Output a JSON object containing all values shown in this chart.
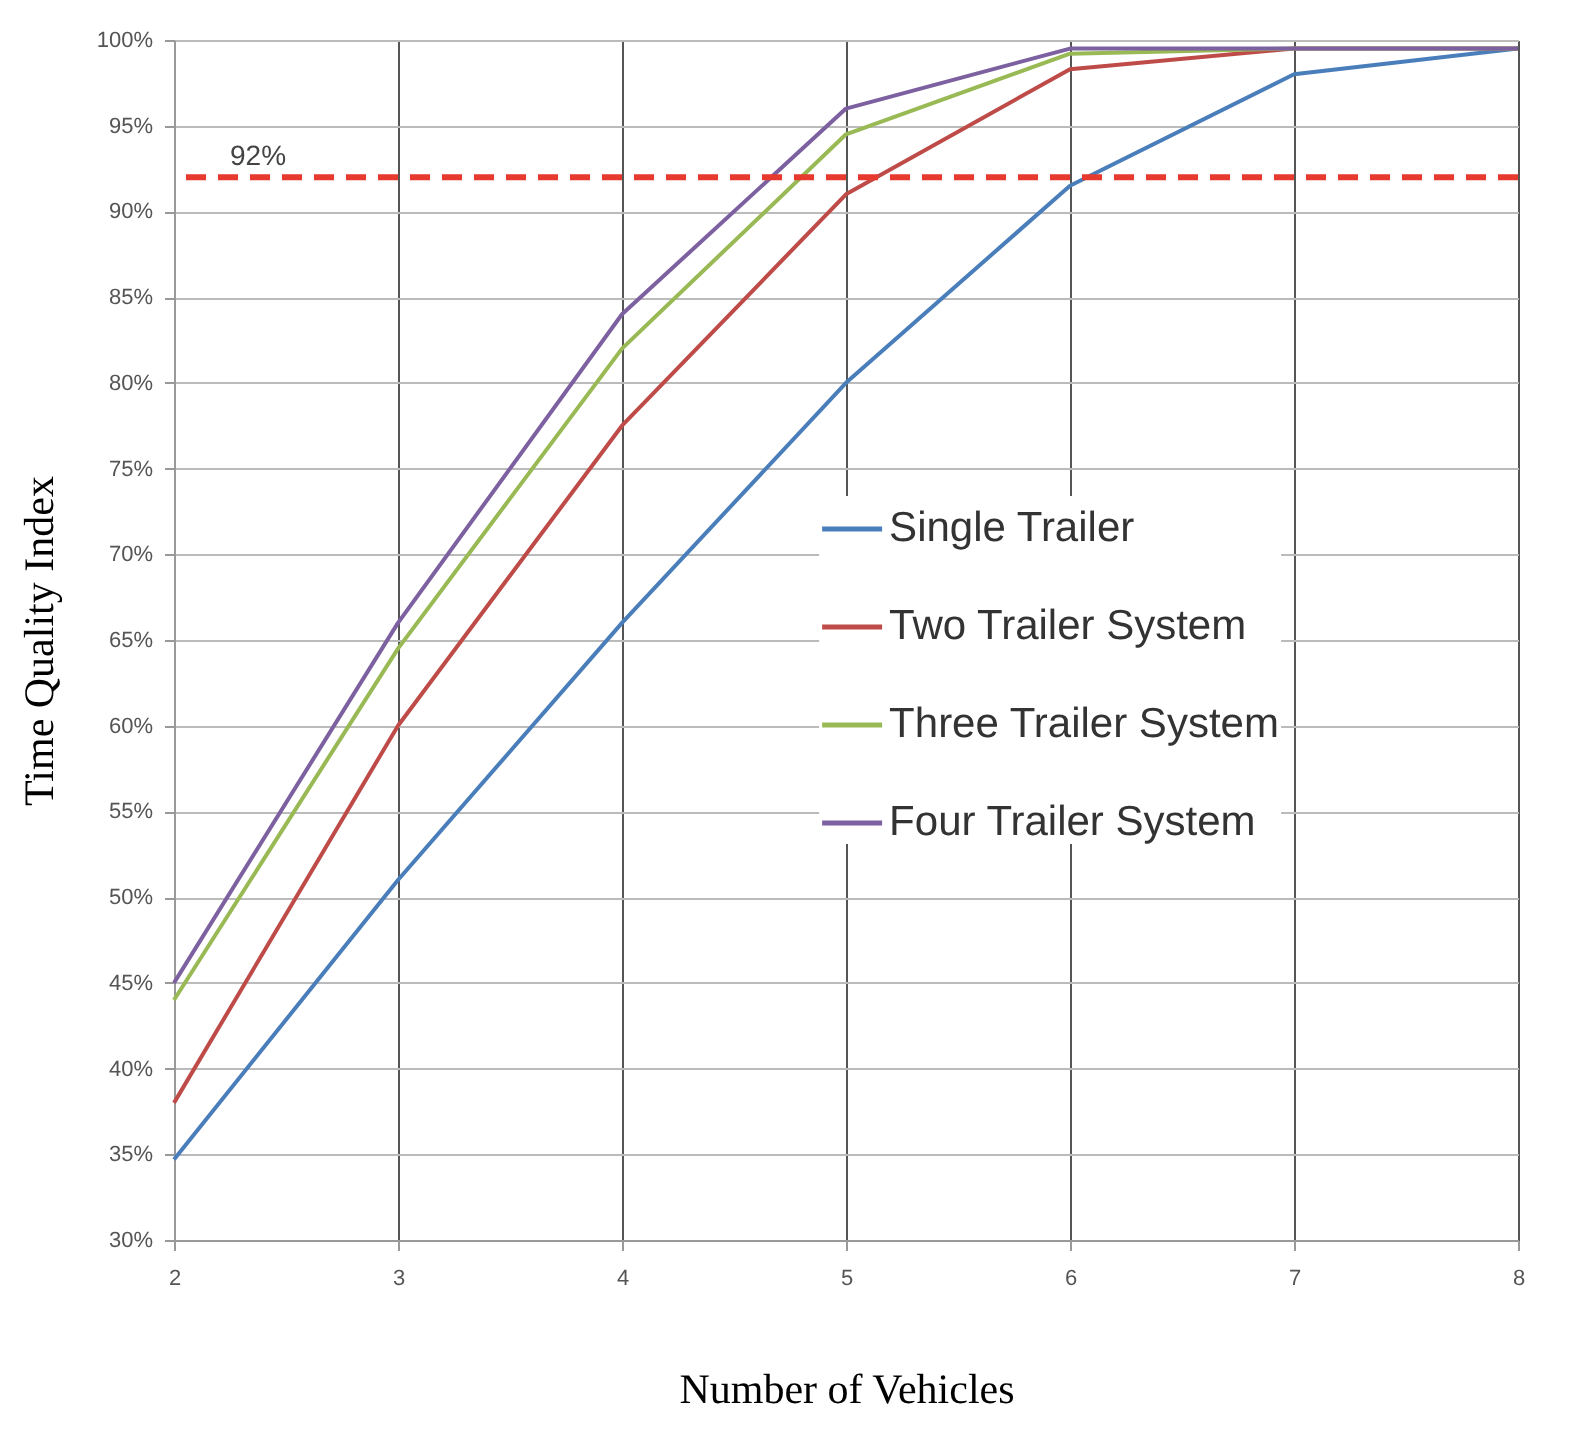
{
  "chart_data": {
    "type": "line",
    "xlabel": "Number of Vehicles",
    "ylabel": "Time Quality Index",
    "x": [
      2,
      3,
      4,
      5,
      6,
      7,
      8
    ],
    "series": [
      {
        "name": "Single Trailer",
        "color": "#4a7ebb",
        "values": [
          34.7,
          51,
          66,
          80,
          91.5,
          98,
          99.5
        ]
      },
      {
        "name": "Two Trailer System",
        "color": "#be4b48",
        "values": [
          38,
          60,
          77.5,
          91,
          98.3,
          99.5,
          99.5
        ]
      },
      {
        "name": "Three Trailer System",
        "color": "#98b954",
        "values": [
          44,
          64.5,
          82,
          94.5,
          99.2,
          99.5,
          99.5
        ]
      },
      {
        "name": "Four Trailer System",
        "color": "#7d60a0",
        "values": [
          45,
          66,
          84,
          96,
          99.5,
          99.5,
          99.5
        ]
      }
    ],
    "xlim": [
      2,
      8
    ],
    "xticks": [
      2,
      3,
      4,
      5,
      6,
      7,
      8
    ],
    "ylim": [
      30,
      100
    ],
    "yticks": [
      {
        "value": 30,
        "label": "30%"
      },
      {
        "value": 35,
        "label": "35%"
      },
      {
        "value": 40,
        "label": "40%"
      },
      {
        "value": 45,
        "label": "45%"
      },
      {
        "value": 50,
        "label": "50%"
      },
      {
        "value": 55,
        "label": "55%"
      },
      {
        "value": 60,
        "label": "60%"
      },
      {
        "value": 65,
        "label": "65%"
      },
      {
        "value": 70,
        "label": "70%"
      },
      {
        "value": 75,
        "label": "75%"
      },
      {
        "value": 80,
        "label": "80%"
      },
      {
        "value": 85,
        "label": "85%"
      },
      {
        "value": 90,
        "label": "90%"
      },
      {
        "value": 95,
        "label": "95%"
      },
      {
        "value": 100,
        "label": "100%"
      }
    ],
    "ref_lines": [
      {
        "axis": "y",
        "value": 92,
        "label": "92%",
        "color": "#e8392f",
        "line_style": "dashed"
      }
    ],
    "grid": true,
    "legend": "right",
    "marker": "none",
    "line_style": "solid"
  }
}
